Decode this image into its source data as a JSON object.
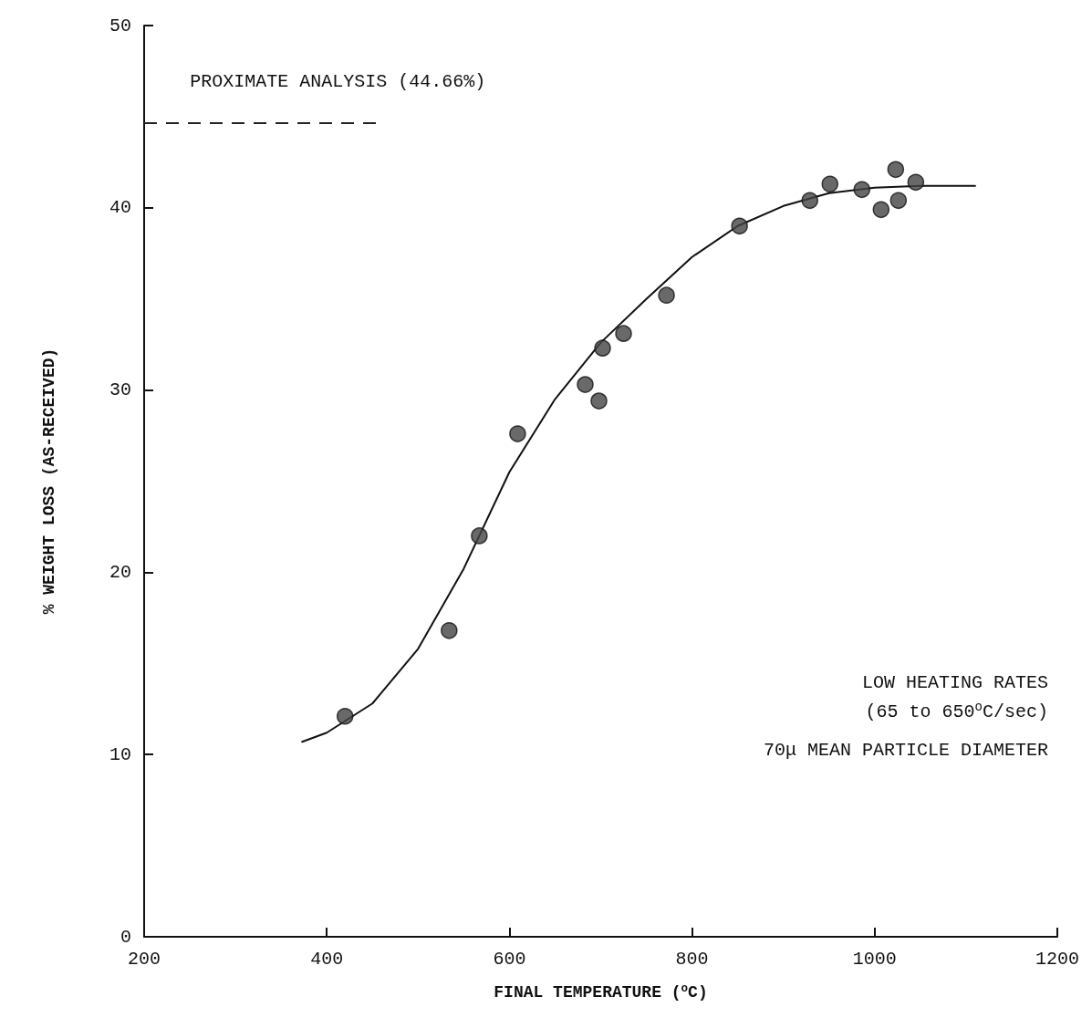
{
  "chart_data": {
    "type": "scatter",
    "xlabel": "FINAL TEMPERATURE ($^{o}$C)",
    "ylabel": "% WEIGHT LOSS (AS-RECEIVED)",
    "xlim": [
      200,
      1200
    ],
    "xticks": [
      200,
      400,
      600,
      800,
      1000,
      1200
    ],
    "ylim": [
      0,
      50
    ],
    "yticks": [
      0,
      10,
      20,
      30,
      40,
      50
    ],
    "grid": false,
    "marker": "circle",
    "series": [
      {
        "type": "scatter",
        "color": "#444444",
        "x": [
          420,
          534,
          567,
          609,
          683,
          698,
          702,
          725,
          772,
          852,
          929,
          951,
          986,
          1007,
          1023,
          1026,
          1045
        ],
        "values": [
          12.1,
          16.8,
          22.0,
          27.6,
          30.3,
          29.4,
          32.3,
          33.1,
          35.2,
          39.0,
          40.4,
          41.3,
          41.0,
          39.9,
          42.1,
          40.4,
          41.4
        ]
      },
      {
        "type": "line",
        "color": "#111111",
        "line_style": "solid",
        "marker": "none",
        "x": [
          373,
          400,
          450,
          500,
          550,
          600,
          650,
          700,
          750,
          800,
          850,
          900,
          950,
          1000,
          1050,
          1110
        ],
        "values": [
          10.7,
          11.2,
          12.8,
          15.8,
          20.2,
          25.5,
          29.5,
          32.6,
          35.0,
          37.3,
          39.0,
          40.1,
          40.8,
          41.1,
          41.2,
          41.2
        ]
      }
    ],
    "ref_lines": [
      {
        "axis": "y",
        "value": 44.66,
        "label": "PROXIMATE ANALYSIS (44.66%)",
        "color": "#222222",
        "line_style": "dashed"
      }
    ],
    "annotations": [
      "LOW HEATING RATES",
      " (65 to 650$^{o}$C/sec)",
      "70μ MEAN PARTICLE DIAMETER"
    ]
  }
}
